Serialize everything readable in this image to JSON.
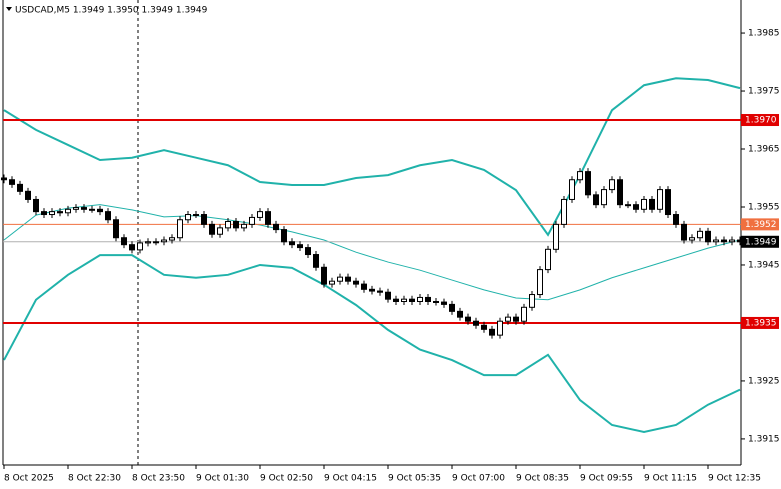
{
  "chart_data": {
    "type": "candlestick",
    "title": "USDCAD,M5  1.3949 1.3950 1.3949 1.3949",
    "xlim": [
      0,
      92
    ],
    "ylim": [
      1.39105,
      1.39907
    ],
    "yticks": [
      1.3985,
      1.3975,
      1.3965,
      1.3955,
      1.3945,
      1.3935,
      1.3925,
      1.3915
    ],
    "xticks": [
      {
        "value": 0,
        "label": "8 Oct 2025"
      },
      {
        "value": 8,
        "label": "8 Oct 22:30"
      },
      {
        "value": 16,
        "label": "8 Oct 23:50"
      },
      {
        "value": 24,
        "label": "9 Oct 01:30"
      },
      {
        "value": 32,
        "label": "9 Oct 02:50"
      },
      {
        "value": 40,
        "label": "9 Oct 04:15"
      },
      {
        "value": 48,
        "label": "9 Oct 05:35"
      },
      {
        "value": 56,
        "label": "9 Oct 07:00"
      },
      {
        "value": 64,
        "label": "9 Oct 08:35"
      },
      {
        "value": 72,
        "label": "9 Oct 09:55"
      },
      {
        "value": 80,
        "label": "9 Oct 11:15"
      },
      {
        "value": 88,
        "label": "9 Oct 12:35"
      }
    ],
    "open": [
      1.396,
      1.39597,
      1.39589,
      1.39577,
      1.39563,
      1.39542,
      1.39537,
      1.39542,
      1.3954,
      1.39546,
      1.39549,
      1.39546,
      1.39546,
      1.39542,
      1.39528,
      1.39497,
      1.39485,
      1.39476,
      1.39488,
      1.3949,
      1.3949,
      1.39493,
      1.39497,
      1.39528,
      1.39537,
      1.39537,
      1.3952,
      1.39503,
      1.39514,
      1.39525,
      1.39514,
      1.3952,
      1.39532,
      1.39542,
      1.3952,
      1.39511,
      1.3949,
      1.39485,
      1.3948,
      1.39468,
      1.39446,
      1.39417,
      1.39422,
      1.39429,
      1.39422,
      1.39417,
      1.39408,
      1.39405,
      1.39403,
      1.39391,
      1.39387,
      1.39391,
      1.39387,
      1.39394,
      1.39387,
      1.39386,
      1.39382,
      1.3937,
      1.3936,
      1.39353,
      1.39346,
      1.39339,
      1.39329,
      1.39353,
      1.3936,
      1.39353,
      1.39377,
      1.39399,
      1.39442,
      1.39477,
      1.3952,
      1.39563,
      1.39597,
      1.39611,
      1.39571,
      1.39554,
      1.3958,
      1.39597,
      1.39554,
      1.39554,
      1.39546,
      1.39563,
      1.39546,
      1.3958,
      1.39537,
      1.3952,
      1.39493,
      1.39497,
      1.39508,
      1.3949,
      1.39493,
      1.3949,
      1.39493
    ],
    "high": [
      1.39606,
      1.39603,
      1.39595,
      1.39583,
      1.39569,
      1.39548,
      1.39548,
      1.39548,
      1.39552,
      1.39555,
      1.39555,
      1.39552,
      1.39552,
      1.39548,
      1.39534,
      1.39503,
      1.39491,
      1.39494,
      1.39496,
      1.39496,
      1.39499,
      1.39503,
      1.39534,
      1.39543,
      1.39543,
      1.39543,
      1.39526,
      1.3952,
      1.39531,
      1.39531,
      1.39526,
      1.39538,
      1.39548,
      1.39548,
      1.39526,
      1.39517,
      1.39496,
      1.39491,
      1.39486,
      1.39474,
      1.39452,
      1.39428,
      1.39435,
      1.39435,
      1.39428,
      1.39423,
      1.39414,
      1.39411,
      1.39409,
      1.39397,
      1.39397,
      1.39397,
      1.394,
      1.394,
      1.39393,
      1.39392,
      1.39388,
      1.39376,
      1.39366,
      1.39359,
      1.39352,
      1.39345,
      1.39359,
      1.39366,
      1.39366,
      1.39383,
      1.39405,
      1.39448,
      1.39483,
      1.39526,
      1.39569,
      1.39603,
      1.39617,
      1.39617,
      1.39577,
      1.39586,
      1.39603,
      1.39603,
      1.3956,
      1.3956,
      1.39569,
      1.39569,
      1.39586,
      1.39586,
      1.39543,
      1.39526,
      1.39503,
      1.39514,
      1.39514,
      1.39499,
      1.39499,
      1.39499,
      1.39499
    ],
    "low": [
      1.39591,
      1.39583,
      1.39571,
      1.39557,
      1.39536,
      1.39531,
      1.39531,
      1.39534,
      1.39534,
      1.3954,
      1.3954,
      1.3954,
      1.39536,
      1.39522,
      1.39491,
      1.39479,
      1.3947,
      1.3947,
      1.39482,
      1.39484,
      1.39484,
      1.39487,
      1.39491,
      1.39522,
      1.39531,
      1.39514,
      1.39497,
      1.39497,
      1.39508,
      1.39508,
      1.39508,
      1.39514,
      1.39526,
      1.39514,
      1.39505,
      1.39484,
      1.39479,
      1.39474,
      1.39462,
      1.3944,
      1.39411,
      1.39411,
      1.39416,
      1.39416,
      1.39411,
      1.39402,
      1.39399,
      1.39397,
      1.39385,
      1.39381,
      1.39381,
      1.39381,
      1.39381,
      1.39381,
      1.3938,
      1.39376,
      1.39364,
      1.39354,
      1.39347,
      1.3934,
      1.39333,
      1.39323,
      1.39323,
      1.39347,
      1.39347,
      1.39347,
      1.39371,
      1.39393,
      1.39436,
      1.39471,
      1.39514,
      1.39557,
      1.39591,
      1.39565,
      1.39548,
      1.39548,
      1.39574,
      1.39548,
      1.39548,
      1.3954,
      1.3954,
      1.3954,
      1.3954,
      1.39531,
      1.39514,
      1.39487,
      1.39487,
      1.39491,
      1.39484,
      1.39484,
      1.39484,
      1.39484,
      1.39484
    ],
    "close": [
      1.39597,
      1.39589,
      1.39577,
      1.39563,
      1.39542,
      1.39537,
      1.39542,
      1.3954,
      1.39546,
      1.39549,
      1.39546,
      1.39546,
      1.39542,
      1.39528,
      1.39497,
      1.39485,
      1.39476,
      1.39488,
      1.3949,
      1.3949,
      1.39493,
      1.39497,
      1.39528,
      1.39537,
      1.39537,
      1.3952,
      1.39503,
      1.39514,
      1.39525,
      1.39514,
      1.3952,
      1.39532,
      1.39542,
      1.3952,
      1.39511,
      1.3949,
      1.39485,
      1.3948,
      1.39468,
      1.39446,
      1.39417,
      1.39422,
      1.39429,
      1.39422,
      1.39417,
      1.39408,
      1.39405,
      1.39403,
      1.39391,
      1.39387,
      1.39391,
      1.39387,
      1.39394,
      1.39387,
      1.39386,
      1.39382,
      1.3937,
      1.3936,
      1.39353,
      1.39346,
      1.39339,
      1.39329,
      1.39353,
      1.3936,
      1.39353,
      1.39377,
      1.39399,
      1.39442,
      1.39477,
      1.3952,
      1.39563,
      1.39597,
      1.39611,
      1.39571,
      1.39554,
      1.3958,
      1.39597,
      1.39554,
      1.39554,
      1.39546,
      1.39563,
      1.39546,
      1.3958,
      1.39537,
      1.3952,
      1.39493,
      1.39497,
      1.39508,
      1.3949,
      1.39493,
      1.3949,
      1.39493,
      1.3949
    ],
    "candle_up_color": "#ffffff",
    "candle_down_color": "#000000",
    "bands": [
      {
        "color": "#20b2aa",
        "width": 2,
        "x": [
          0,
          4,
          8,
          12,
          16,
          20,
          24,
          28,
          32,
          36,
          40,
          44,
          48,
          52,
          56,
          60,
          64,
          68,
          72,
          76,
          80,
          84,
          88,
          92
        ],
        "values": [
          1.39717,
          1.39683,
          1.39657,
          1.39631,
          1.39635,
          1.39648,
          1.39635,
          1.39622,
          1.39593,
          1.39588,
          1.39588,
          1.396,
          1.39605,
          1.39622,
          1.39631,
          1.39614,
          1.39579,
          1.39502,
          1.39605,
          1.39717,
          1.3976,
          1.39772,
          1.39769,
          1.39755
        ]
      },
      {
        "color": "#20b2aa",
        "width": 1,
        "x": [
          0,
          4,
          8,
          12,
          16,
          20,
          24,
          28,
          32,
          36,
          40,
          44,
          48,
          52,
          56,
          60,
          64,
          68,
          72,
          76,
          80,
          84,
          88,
          92
        ],
        "values": [
          1.39493,
          1.39536,
          1.39548,
          1.39554,
          1.39545,
          1.39533,
          1.39535,
          1.39528,
          1.39519,
          1.39507,
          1.39493,
          1.39472,
          1.39455,
          1.39441,
          1.39424,
          1.39407,
          1.39393,
          1.3939,
          1.39407,
          1.39428,
          1.39445,
          1.39462,
          1.39479,
          1.39493
        ]
      },
      {
        "color": "#20b2aa",
        "width": 2,
        "x": [
          0,
          4,
          8,
          12,
          16,
          20,
          24,
          28,
          32,
          36,
          40,
          44,
          48,
          52,
          56,
          60,
          64,
          68,
          72,
          76,
          80,
          84,
          88,
          92
        ],
        "values": [
          1.39286,
          1.3939,
          1.39433,
          1.39467,
          1.39467,
          1.39433,
          1.39428,
          1.39433,
          1.3945,
          1.39445,
          1.39416,
          1.39381,
          1.39338,
          1.39304,
          1.39286,
          1.3926,
          1.3926,
          1.39295,
          1.39217,
          1.39174,
          1.39162,
          1.39174,
          1.39209,
          1.39235
        ]
      }
    ],
    "levels": [
      {
        "value": 1.397,
        "label": "1.3970",
        "color": "#e00000",
        "width": 2
      },
      {
        "value": 1.3952,
        "label": "1.3952",
        "color": "#f07040",
        "width": 1
      },
      {
        "value": 1.3935,
        "label": "1.3935",
        "color": "#e00000",
        "width": 2
      }
    ],
    "last_price": {
      "value": 1.3949,
      "label": "1.3949",
      "color": "#000000",
      "line_color": "#b0b0b0"
    }
  }
}
